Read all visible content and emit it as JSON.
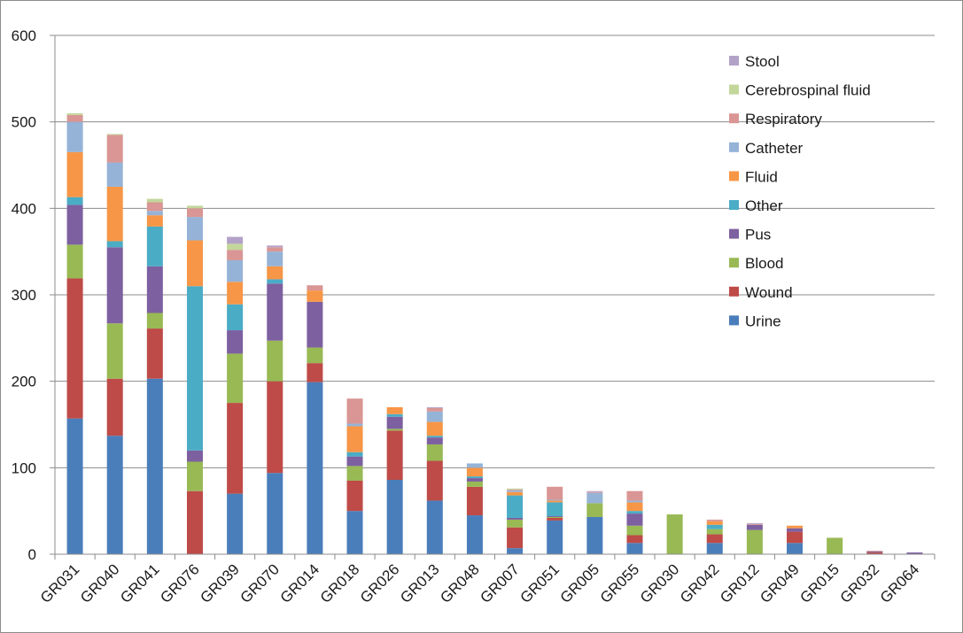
{
  "chart_data": {
    "type": "bar",
    "stacked": true,
    "title": "",
    "xlabel": "",
    "ylabel": "",
    "ylim": [
      0,
      600
    ],
    "yticks": [
      0,
      100,
      200,
      300,
      400,
      500,
      600
    ],
    "grid": true,
    "legend_position": "top-right",
    "categories": [
      "GR031",
      "GR040",
      "GR041",
      "GR076",
      "GR039",
      "GR070",
      "GR014",
      "GR018",
      "GR026",
      "GR013",
      "GR048",
      "GR007",
      "GR051",
      "GR005",
      "GR055",
      "GR030",
      "GR042",
      "GR012",
      "GR049",
      "GR015",
      "GR032",
      "GR064"
    ],
    "series": [
      {
        "name": "Urine",
        "color": "#4a7ebb",
        "values": [
          157,
          137,
          203,
          0,
          70,
          94,
          199,
          50,
          86,
          62,
          45,
          7,
          39,
          43,
          13,
          0,
          13,
          0,
          13,
          0,
          0,
          0
        ]
      },
      {
        "name": "Wound",
        "color": "#be4b48",
        "values": [
          162,
          66,
          58,
          73,
          105,
          106,
          22,
          35,
          57,
          46,
          33,
          24,
          3,
          0,
          9,
          0,
          10,
          0,
          13,
          0,
          2,
          0
        ]
      },
      {
        "name": "Blood",
        "color": "#98b954",
        "values": [
          39,
          64,
          18,
          34,
          57,
          47,
          18,
          17,
          2,
          19,
          6,
          9,
          1,
          16,
          11,
          46,
          6,
          28,
          0,
          19,
          0,
          0
        ]
      },
      {
        "name": "Pus",
        "color": "#7d60a0",
        "values": [
          46,
          88,
          54,
          13,
          27,
          66,
          53,
          11,
          14,
          8,
          4,
          2,
          1,
          0,
          14,
          0,
          0,
          6,
          4,
          0,
          1,
          2
        ]
      },
      {
        "name": "Other",
        "color": "#4bacc6",
        "values": [
          9,
          7,
          46,
          190,
          30,
          5,
          0,
          5,
          3,
          2,
          2,
          26,
          16,
          0,
          3,
          0,
          5,
          0,
          0,
          0,
          0,
          0
        ]
      },
      {
        "name": "Fluid",
        "color": "#f79646",
        "values": [
          52,
          63,
          13,
          53,
          26,
          15,
          13,
          30,
          8,
          16,
          10,
          4,
          2,
          0,
          10,
          0,
          4,
          0,
          3,
          0,
          0,
          0
        ]
      },
      {
        "name": "Catheter",
        "color": "#95b3d7",
        "values": [
          35,
          28,
          5,
          27,
          25,
          17,
          0,
          3,
          0,
          12,
          5,
          2,
          1,
          12,
          2,
          0,
          0,
          0,
          0,
          0,
          0,
          0
        ]
      },
      {
        "name": "Respiratory",
        "color": "#d99694",
        "values": [
          8,
          32,
          10,
          10,
          12,
          5,
          6,
          29,
          0,
          4,
          0,
          1,
          15,
          1,
          11,
          0,
          2,
          1,
          0,
          0,
          1,
          0
        ]
      },
      {
        "name": "Cerebrospinal fluid",
        "color": "#c3d69b",
        "values": [
          2,
          1,
          4,
          3,
          7,
          0,
          0,
          0,
          0,
          0,
          0,
          1,
          0,
          0,
          0,
          0,
          0,
          0,
          0,
          0,
          0,
          0
        ]
      },
      {
        "name": "Stool",
        "color": "#b3a2c7",
        "values": [
          0,
          0,
          0,
          0,
          8,
          2,
          0,
          0,
          0,
          1,
          0,
          0,
          0,
          1,
          0,
          0,
          0,
          1,
          0,
          0,
          0,
          0
        ]
      }
    ],
    "legend_order": [
      "Stool",
      "Cerebrospinal fluid",
      "Respiratory",
      "Catheter",
      "Fluid",
      "Other",
      "Pus",
      "Blood",
      "Wound",
      "Urine"
    ]
  }
}
